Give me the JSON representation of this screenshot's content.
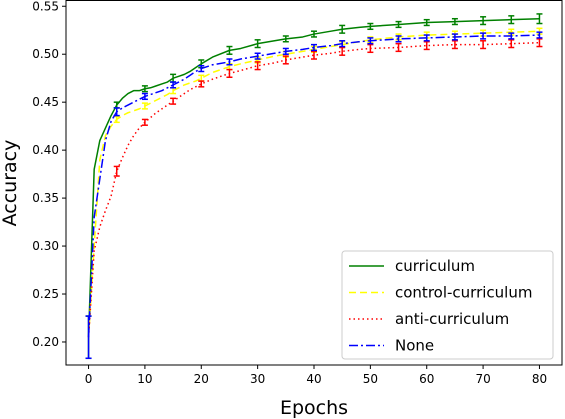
{
  "chart_data": {
    "type": "line",
    "title": "",
    "xlabel": "Epochs",
    "ylabel": "Accuracy",
    "xlim": [
      -4,
      84
    ],
    "ylim": [
      0.176,
      0.556
    ],
    "x_ticks": [
      0,
      10,
      20,
      30,
      40,
      50,
      60,
      70,
      80
    ],
    "y_ticks": [
      0.2,
      0.25,
      0.3,
      0.35,
      0.4,
      0.45,
      0.5,
      0.55
    ],
    "y_tick_labels": [
      "0.20",
      "0.25",
      "0.30",
      "0.35",
      "0.40",
      "0.45",
      "0.50",
      "0.55"
    ],
    "grid": false,
    "legend_position": "lower-right",
    "x": [
      0,
      1,
      2,
      3,
      4,
      5,
      6,
      7,
      8,
      9,
      10,
      11,
      12,
      13,
      14,
      15,
      16,
      17,
      18,
      19,
      20,
      22,
      25,
      27,
      30,
      33,
      35,
      38,
      40,
      43,
      45,
      48,
      50,
      55,
      60,
      65,
      70,
      75,
      80
    ],
    "series": [
      {
        "name": "curriculum",
        "color": "#008000",
        "dash": "solid",
        "values": [
          0.205,
          0.38,
          0.41,
          0.423,
          0.436,
          0.447,
          0.454,
          0.459,
          0.462,
          0.462,
          0.464,
          0.465,
          0.467,
          0.469,
          0.471,
          0.475,
          0.477,
          0.479,
          0.482,
          0.486,
          0.49,
          0.497,
          0.504,
          0.506,
          0.511,
          0.514,
          0.516,
          0.518,
          0.521,
          0.524,
          0.526,
          0.528,
          0.529,
          0.531,
          0.533,
          0.534,
          0.535,
          0.536,
          0.537
        ],
        "error_bars": [
          {
            "x": 0,
            "err": 0.022
          },
          {
            "x": 5,
            "err": 0.003
          },
          {
            "x": 10,
            "err": 0.003
          },
          {
            "x": 15,
            "err": 0.004
          },
          {
            "x": 20,
            "err": 0.004
          },
          {
            "x": 25,
            "err": 0.004
          },
          {
            "x": 30,
            "err": 0.004
          },
          {
            "x": 35,
            "err": 0.003
          },
          {
            "x": 40,
            "err": 0.003
          },
          {
            "x": 45,
            "err": 0.004
          },
          {
            "x": 50,
            "err": 0.003
          },
          {
            "x": 55,
            "err": 0.003
          },
          {
            "x": 60,
            "err": 0.003
          },
          {
            "x": 65,
            "err": 0.003
          },
          {
            "x": 70,
            "err": 0.004
          },
          {
            "x": 75,
            "err": 0.004
          },
          {
            "x": 80,
            "err": 0.005
          }
        ]
      },
      {
        "name": "control-curriculum",
        "color": "#ffff00",
        "dash": "dashed",
        "values": [
          0.205,
          0.3,
          0.39,
          0.415,
          0.425,
          0.432,
          0.436,
          0.439,
          0.441,
          0.443,
          0.446,
          0.449,
          0.452,
          0.455,
          0.458,
          0.462,
          0.465,
          0.468,
          0.47,
          0.472,
          0.475,
          0.481,
          0.487,
          0.49,
          0.494,
          0.498,
          0.5,
          0.503,
          0.505,
          0.508,
          0.51,
          0.513,
          0.515,
          0.518,
          0.52,
          0.521,
          0.522,
          0.523,
          0.524
        ],
        "error_bars": [
          {
            "x": 5,
            "err": 0.003
          },
          {
            "x": 10,
            "err": 0.003
          },
          {
            "x": 15,
            "err": 0.003
          },
          {
            "x": 20,
            "err": 0.003
          },
          {
            "x": 25,
            "err": 0.003
          },
          {
            "x": 30,
            "err": 0.003
          },
          {
            "x": 35,
            "err": 0.003
          },
          {
            "x": 40,
            "err": 0.003
          },
          {
            "x": 45,
            "err": 0.003
          },
          {
            "x": 50,
            "err": 0.003
          },
          {
            "x": 55,
            "err": 0.003
          },
          {
            "x": 60,
            "err": 0.003
          },
          {
            "x": 65,
            "err": 0.003
          },
          {
            "x": 70,
            "err": 0.003
          },
          {
            "x": 75,
            "err": 0.003
          },
          {
            "x": 80,
            "err": 0.003
          }
        ]
      },
      {
        "name": "anti-curriculum",
        "color": "#ff0000",
        "dash": "dotted",
        "values": [
          0.205,
          0.295,
          0.32,
          0.337,
          0.352,
          0.378,
          0.392,
          0.405,
          0.415,
          0.423,
          0.429,
          0.434,
          0.439,
          0.443,
          0.447,
          0.451,
          0.455,
          0.459,
          0.463,
          0.466,
          0.469,
          0.474,
          0.48,
          0.483,
          0.488,
          0.491,
          0.494,
          0.497,
          0.499,
          0.501,
          0.503,
          0.505,
          0.506,
          0.507,
          0.509,
          0.51,
          0.51,
          0.511,
          0.512
        ],
        "error_bars": [
          {
            "x": 5,
            "err": 0.005
          },
          {
            "x": 10,
            "err": 0.003
          },
          {
            "x": 15,
            "err": 0.003
          },
          {
            "x": 20,
            "err": 0.003
          },
          {
            "x": 25,
            "err": 0.004
          },
          {
            "x": 30,
            "err": 0.004
          },
          {
            "x": 35,
            "err": 0.004
          },
          {
            "x": 40,
            "err": 0.004
          },
          {
            "x": 45,
            "err": 0.004
          },
          {
            "x": 50,
            "err": 0.004
          },
          {
            "x": 55,
            "err": 0.004
          },
          {
            "x": 60,
            "err": 0.004
          },
          {
            "x": 65,
            "err": 0.004
          },
          {
            "x": 70,
            "err": 0.004
          },
          {
            "x": 75,
            "err": 0.004
          },
          {
            "x": 80,
            "err": 0.004
          }
        ]
      },
      {
        "name": "None",
        "color": "#0000ff",
        "dash": "dashdot",
        "values": [
          0.205,
          0.33,
          0.37,
          0.41,
          0.43,
          0.44,
          0.444,
          0.447,
          0.45,
          0.453,
          0.456,
          0.458,
          0.46,
          0.462,
          0.465,
          0.468,
          0.471,
          0.474,
          0.478,
          0.482,
          0.485,
          0.489,
          0.492,
          0.495,
          0.498,
          0.501,
          0.503,
          0.505,
          0.507,
          0.509,
          0.511,
          0.513,
          0.514,
          0.516,
          0.517,
          0.518,
          0.519,
          0.519,
          0.52
        ],
        "error_bars": [
          {
            "x": 0,
            "err": 0.022
          },
          {
            "x": 5,
            "err": 0.004
          },
          {
            "x": 10,
            "err": 0.003
          },
          {
            "x": 15,
            "err": 0.003
          },
          {
            "x": 20,
            "err": 0.003
          },
          {
            "x": 25,
            "err": 0.003
          },
          {
            "x": 30,
            "err": 0.003
          },
          {
            "x": 35,
            "err": 0.003
          },
          {
            "x": 40,
            "err": 0.003
          },
          {
            "x": 45,
            "err": 0.003
          },
          {
            "x": 50,
            "err": 0.003
          },
          {
            "x": 55,
            "err": 0.003
          },
          {
            "x": 60,
            "err": 0.003
          },
          {
            "x": 65,
            "err": 0.003
          },
          {
            "x": 70,
            "err": 0.003
          },
          {
            "x": 75,
            "err": 0.003
          },
          {
            "x": 80,
            "err": 0.003
          }
        ]
      }
    ]
  }
}
